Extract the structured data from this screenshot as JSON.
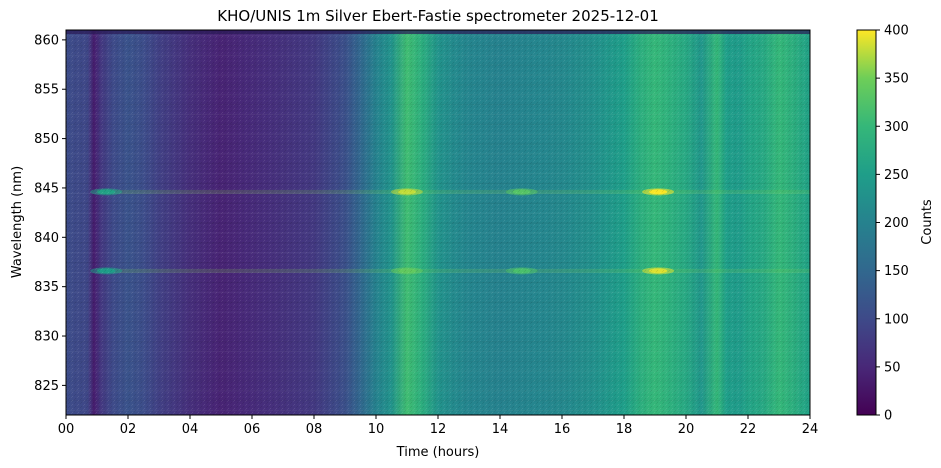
{
  "chart_data": {
    "type": "heatmap",
    "title": "KHO/UNIS 1m Silver Ebert-Fastie spectrometer 2025-12-01",
    "xlabel": "Time (hours)",
    "ylabel": "Wavelength (nm)",
    "xlim": [
      0,
      24
    ],
    "ylim": [
      822,
      861
    ],
    "x_ticks": [
      "00",
      "02",
      "04",
      "06",
      "08",
      "10",
      "12",
      "14",
      "16",
      "18",
      "20",
      "22",
      "24"
    ],
    "y_ticks": [
      825,
      830,
      835,
      840,
      845,
      850,
      855,
      860
    ],
    "colorbar": {
      "label": "Counts",
      "colormap": "viridis",
      "range": [
        0,
        400
      ],
      "ticks": [
        0,
        50,
        100,
        150,
        200,
        250,
        300,
        350,
        400
      ]
    },
    "column_profile": {
      "hours": [
        0,
        0.7,
        0.9,
        1.1,
        1.5,
        2.0,
        2.5,
        3.0,
        4.0,
        5.0,
        6.0,
        7.0,
        8.0,
        9.0,
        9.5,
        10.0,
        10.5,
        11.0,
        11.5,
        12.0,
        12.5,
        13.0,
        14.0,
        15.0,
        16.0,
        17.0,
        18.0,
        18.5,
        19.0,
        19.5,
        20.0,
        20.5,
        21.0,
        21.3,
        21.7,
        22.0,
        22.5,
        23.0,
        23.5,
        24.0
      ],
      "counts": [
        105,
        95,
        35,
        70,
        100,
        115,
        105,
        85,
        60,
        45,
        55,
        65,
        75,
        110,
        150,
        200,
        230,
        310,
        280,
        230,
        215,
        205,
        200,
        205,
        210,
        225,
        250,
        280,
        300,
        285,
        270,
        235,
        300,
        250,
        245,
        260,
        270,
        300,
        280,
        255
      ]
    },
    "emission_lines": [
      {
        "wavelength_nm": 844.6,
        "peaks": [
          {
            "hour": 1.3,
            "counts": 260
          },
          {
            "hour": 11.0,
            "counts": 380
          },
          {
            "hour": 14.7,
            "counts": 330
          },
          {
            "hour": 19.1,
            "counts": 400
          }
        ]
      },
      {
        "wavelength_nm": 836.6,
        "peaks": [
          {
            "hour": 1.3,
            "counts": 250
          },
          {
            "hour": 11.0,
            "counts": 340
          },
          {
            "hour": 14.7,
            "counts": 320
          },
          {
            "hour": 19.1,
            "counts": 390
          }
        ]
      }
    ]
  }
}
